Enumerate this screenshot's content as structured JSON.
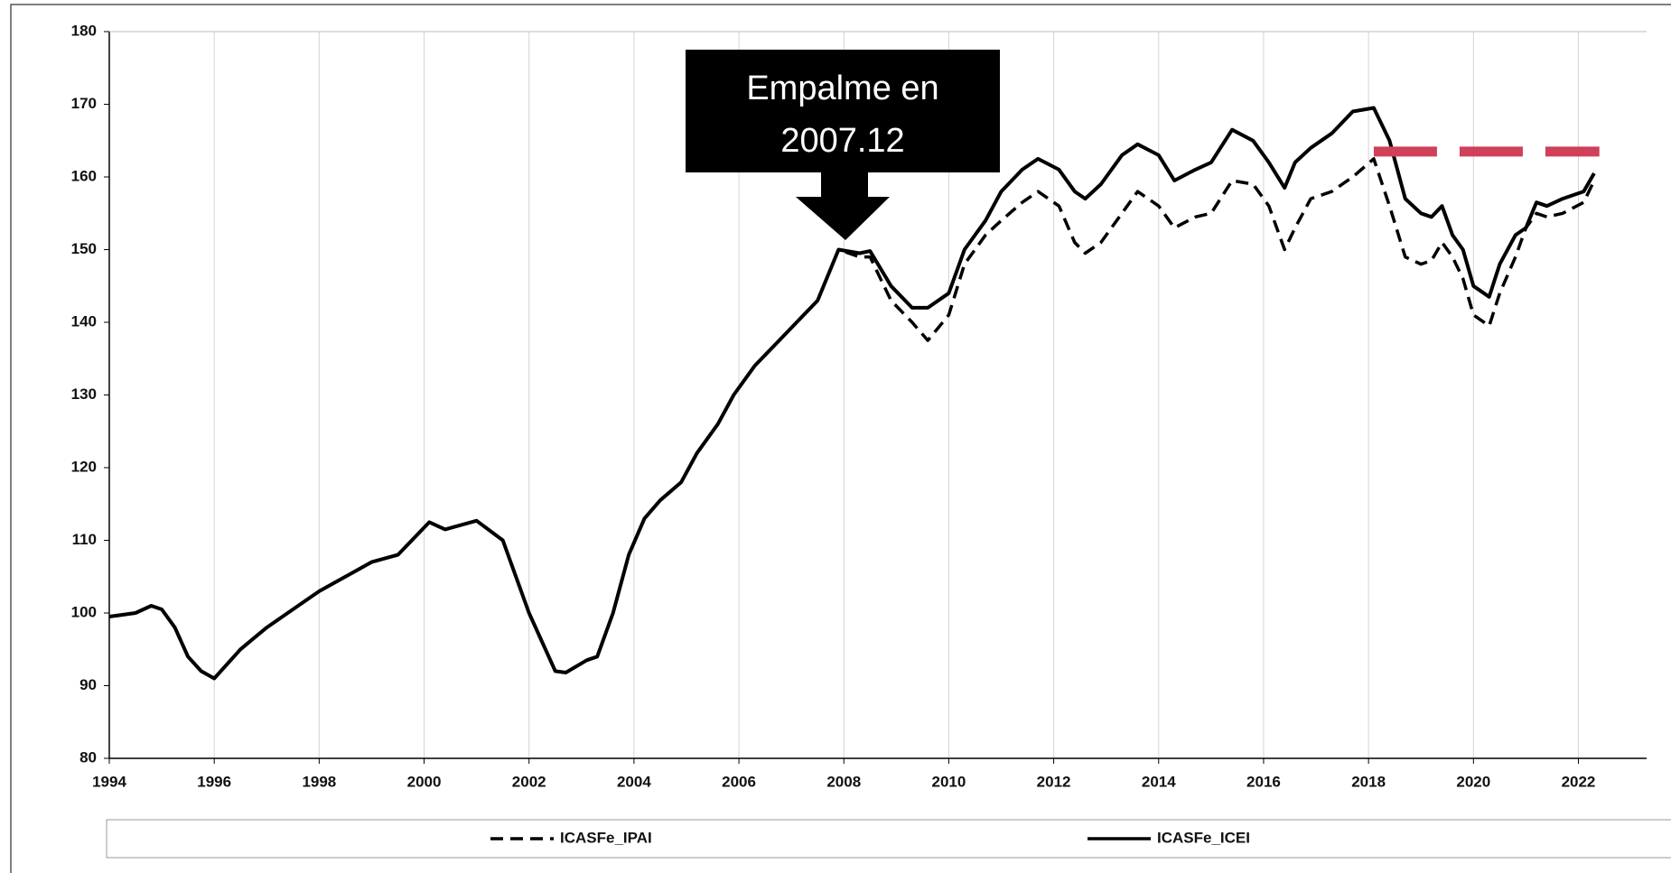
{
  "chart_data": {
    "type": "line",
    "annotation": [
      "Empalme en",
      "2007.12"
    ],
    "x": [
      1994.0,
      1994.5,
      1994.8,
      1995.0,
      1995.25,
      1995.5,
      1995.75,
      1996.0,
      1996.25,
      1996.5,
      1996.75,
      1997.0,
      1997.5,
      1998.0,
      1998.5,
      1999.0,
      1999.5,
      2000.1,
      2000.4,
      2001.0,
      2001.5,
      2002.0,
      2002.5,
      2002.7,
      2003.1,
      2003.3,
      2003.6,
      2003.9,
      2004.2,
      2004.5,
      2004.9,
      2005.2,
      2005.6,
      2005.9,
      2006.3,
      2006.7,
      2007.1,
      2007.5,
      2007.9,
      2008.3,
      2008.5,
      2008.9,
      2009.3,
      2009.6,
      2010.0,
      2010.3,
      2010.7,
      2011.0,
      2011.4,
      2011.7,
      2012.1,
      2012.4,
      2012.6,
      2012.9,
      2013.3,
      2013.6,
      2014.0,
      2014.3,
      2014.7,
      2015.0,
      2015.4,
      2015.8,
      2016.1,
      2016.4,
      2016.6,
      2016.9,
      2017.3,
      2017.7,
      2018.1,
      2018.4,
      2018.7,
      2019.0,
      2019.2,
      2019.4,
      2019.6,
      2019.8,
      2020.0,
      2020.3,
      2020.5,
      2020.8,
      2021.0,
      2021.2,
      2021.4,
      2021.7,
      2022.1,
      2022.3
    ],
    "series": [
      {
        "name": "ICASFe_IPAI",
        "color": "#000000",
        "dashed": true,
        "values": [
          99.5,
          100,
          101,
          100.5,
          98,
          94,
          92,
          91,
          93,
          95,
          96.5,
          98,
          100.5,
          103,
          105,
          107,
          108,
          112.5,
          111.5,
          112.7,
          110,
          100,
          92,
          91.8,
          93.5,
          94,
          100,
          108,
          113,
          115.5,
          118,
          122,
          126,
          130,
          134,
          137,
          140,
          143,
          150,
          149,
          149,
          143,
          140,
          137.5,
          141,
          148,
          152,
          154,
          156.5,
          158,
          156,
          151,
          149.5,
          151,
          155,
          158,
          156,
          153,
          154.5,
          155,
          159.5,
          159,
          156,
          150,
          153,
          157,
          158,
          160,
          162.5,
          156,
          149,
          148,
          148.5,
          151,
          149,
          146,
          141,
          139.5,
          144,
          149,
          153,
          155,
          154.5,
          155,
          156.5,
          159.5
        ]
      },
      {
        "name": "ICASFe_ICEI",
        "color": "#000000",
        "dashed": false,
        "values": [
          99.5,
          100,
          101,
          100.5,
          98,
          94,
          92,
          91,
          93,
          95,
          96.5,
          98,
          100.5,
          103,
          105,
          107,
          108,
          112.5,
          111.5,
          112.7,
          110,
          100,
          92,
          91.8,
          93.5,
          94,
          100,
          108,
          113,
          115.5,
          118,
          122,
          126,
          130,
          134,
          137,
          140,
          143,
          150,
          149.5,
          149.8,
          145,
          142,
          142,
          144,
          150,
          154,
          158,
          161,
          162.5,
          161,
          158,
          157,
          159,
          163,
          164.5,
          163,
          159.5,
          161,
          162,
          166.5,
          165,
          162,
          158.5,
          162,
          164,
          166,
          169,
          169.5,
          165,
          157,
          155,
          154.5,
          156,
          152,
          150,
          145,
          143.5,
          148,
          152,
          153,
          156.5,
          156,
          157,
          158,
          160.5
        ]
      }
    ],
    "reference_line": {
      "value": 163.5,
      "x": [
        2018.1,
        2022.4
      ],
      "color": "#d0405a"
    },
    "xlim": [
      1994,
      2023.3
    ],
    "xticks": [
      1994,
      1996,
      1998,
      2000,
      2002,
      2004,
      2006,
      2008,
      2010,
      2012,
      2014,
      2016,
      2018,
      2020,
      2022
    ],
    "ylim": [
      80,
      180
    ],
    "yticks": [
      80,
      90,
      100,
      110,
      120,
      130,
      140,
      150,
      160,
      170,
      180
    ],
    "grid": true
  }
}
